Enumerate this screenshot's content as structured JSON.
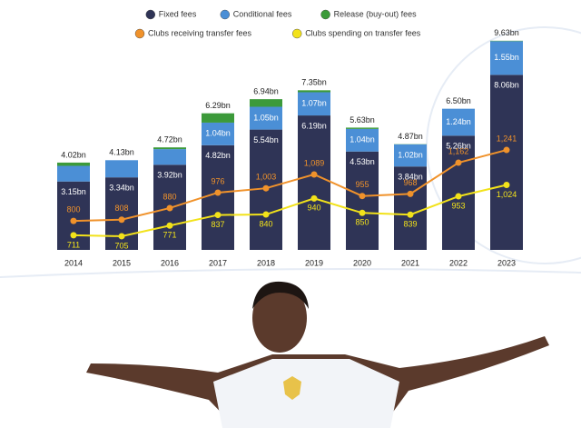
{
  "chart_data": {
    "type": "bar",
    "stacked": true,
    "categories": [
      "2014",
      "2015",
      "2016",
      "2017",
      "2018",
      "2019",
      "2020",
      "2021",
      "2022",
      "2023"
    ],
    "ylim": [
      0,
      10
    ],
    "y2lim": [
      620,
      1970
    ],
    "series": [
      {
        "name": "Fixed fees",
        "color": "#2f3456",
        "values": [
          3.15,
          3.34,
          3.92,
          4.82,
          5.54,
          6.19,
          4.53,
          3.84,
          5.26,
          8.06
        ],
        "value_labels": [
          "3.15bn",
          "3.34bn",
          "3.92bn",
          "4.82bn",
          "5.54bn",
          "6.19bn",
          "4.53bn",
          "3.84bn",
          "5.26bn",
          "8.06bn"
        ]
      },
      {
        "name": "Conditional fees",
        "color": "#4b8fd6",
        "values": [
          0.72,
          0.79,
          0.72,
          1.04,
          1.05,
          1.07,
          1.04,
          1.02,
          1.24,
          1.55
        ],
        "value_labels": [
          null,
          null,
          null,
          "1.04bn",
          "1.05bn",
          "1.07bn",
          "1.04bn",
          "1.02bn",
          "1.24bn",
          "1.55bn"
        ]
      },
      {
        "name": "Release (buy-out) fees",
        "color": "#3c9a3a",
        "values": [
          0.15,
          0,
          0.08,
          0.43,
          0.35,
          0.09,
          0.06,
          0.01,
          0,
          0.02
        ]
      },
      {
        "name": "Clubs receiving transfer fees",
        "color": "#f0922b",
        "type": "line",
        "axis": "y2",
        "values": [
          800,
          808,
          880,
          976,
          1003,
          1089,
          955,
          968,
          1162,
          1241
        ],
        "value_labels": [
          "800",
          "808",
          "880",
          "976",
          "1,003",
          "1,089",
          "955",
          "968",
          "1,162",
          "1,241"
        ]
      },
      {
        "name": "Clubs spending on transfer fees",
        "color": "#f2e21a",
        "type": "line",
        "axis": "y2",
        "values": [
          711,
          705,
          771,
          837,
          840,
          940,
          850,
          839,
          953,
          1024
        ],
        "value_labels": [
          "711",
          "705",
          "771",
          "837",
          "840",
          "940",
          "850",
          "839",
          "953",
          "1,024"
        ]
      }
    ],
    "totals": {
      "values": [
        4.02,
        4.13,
        4.72,
        6.29,
        6.94,
        7.35,
        5.63,
        4.87,
        6.5,
        9.63
      ],
      "value_labels": [
        "4.02bn",
        "4.13bn",
        "4.72bn",
        "6.29bn",
        "6.94bn",
        "7.35bn",
        "5.63bn",
        "4.87bn",
        "6.50bn",
        "9.63bn"
      ]
    }
  }
}
